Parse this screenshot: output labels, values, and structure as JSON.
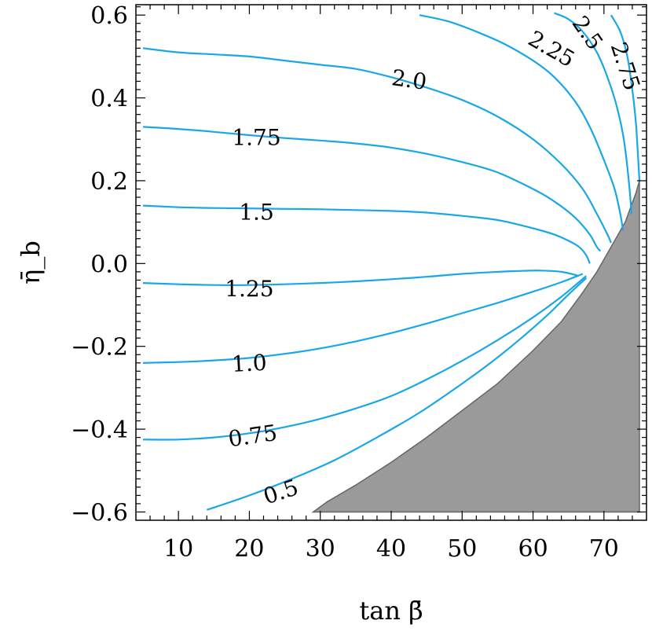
{
  "chart_data": {
    "type": "line",
    "title": "",
    "xlabel": "tan β̄",
    "ylabel": "η̄_b",
    "xlim": [
      4,
      76
    ],
    "ylim": [
      -0.62,
      0.625
    ],
    "x_ticks": [
      10,
      20,
      30,
      40,
      50,
      60,
      70
    ],
    "y_ticks": [
      -0.6,
      -0.4,
      -0.2,
      0.0,
      0.2,
      0.4,
      0.6
    ],
    "x_tick_labels": [
      "10",
      "20",
      "30",
      "40",
      "50",
      "60",
      "70"
    ],
    "y_tick_labels": [
      "−0.6",
      "−0.4",
      "−0.2",
      "0.0",
      "0.2",
      "0.4",
      "0.6"
    ],
    "colors": {
      "contour": "#1aa7e8",
      "excluded_region": "#9a9a9a"
    },
    "excluded_region": {
      "x": [
        29,
        31,
        35,
        40,
        45,
        50,
        55,
        60,
        64,
        67,
        69,
        71,
        73,
        74.5,
        75,
        75
      ],
      "y": [
        -0.6,
        -0.575,
        -0.535,
        -0.48,
        -0.42,
        -0.355,
        -0.29,
        -0.21,
        -0.14,
        -0.07,
        -0.02,
        0.04,
        0.1,
        0.17,
        0.2,
        -0.6
      ]
    },
    "series": [
      {
        "label": "0.5",
        "label_at": [
          24.5,
          -0.555
        ],
        "label_angle": -18,
        "x": [
          14,
          20,
          26,
          32,
          38,
          44,
          50,
          54,
          58,
          62,
          65,
          67.5
        ],
        "y": [
          -0.595,
          -0.56,
          -0.52,
          -0.475,
          -0.42,
          -0.36,
          -0.29,
          -0.24,
          -0.185,
          -0.125,
          -0.075,
          -0.035
        ]
      },
      {
        "label": "0.75",
        "label_at": [
          20.5,
          -0.42
        ],
        "label_angle": -8,
        "x": [
          5,
          10,
          15,
          20,
          25,
          30,
          35,
          40,
          45,
          50,
          55,
          60,
          64,
          67.5
        ],
        "y": [
          -0.425,
          -0.425,
          -0.42,
          -0.41,
          -0.395,
          -0.375,
          -0.35,
          -0.32,
          -0.28,
          -0.235,
          -0.185,
          -0.13,
          -0.08,
          -0.03
        ]
      },
      {
        "label": "1.0",
        "label_at": [
          20.0,
          -0.245
        ],
        "label_angle": -3,
        "x": [
          5,
          10,
          15,
          20,
          25,
          30,
          35,
          40,
          45,
          50,
          55,
          60,
          64,
          67
        ],
        "y": [
          -0.24,
          -0.238,
          -0.234,
          -0.228,
          -0.218,
          -0.205,
          -0.188,
          -0.168,
          -0.145,
          -0.12,
          -0.095,
          -0.068,
          -0.045,
          -0.025
        ]
      },
      {
        "label": "1.25",
        "label_at": [
          20.0,
          -0.065
        ],
        "label_angle": 0,
        "x": [
          5,
          10,
          15,
          20,
          25,
          30,
          35,
          40,
          45,
          50,
          55,
          58,
          61,
          64,
          66.5
        ],
        "y": [
          -0.047,
          -0.05,
          -0.052,
          -0.052,
          -0.05,
          -0.047,
          -0.043,
          -0.038,
          -0.032,
          -0.025,
          -0.02,
          -0.018,
          -0.017,
          -0.02,
          -0.03
        ]
      },
      {
        "label": "1.5",
        "label_at": [
          21.0,
          0.12
        ],
        "label_angle": 0,
        "x": [
          5,
          10,
          15,
          20,
          25,
          30,
          35,
          40,
          45,
          50,
          55,
          60,
          63,
          65,
          66.5,
          67.5,
          68
        ],
        "y": [
          0.14,
          0.136,
          0.134,
          0.133,
          0.132,
          0.131,
          0.129,
          0.127,
          0.123,
          0.115,
          0.105,
          0.085,
          0.07,
          0.055,
          0.04,
          0.02,
          0.0
        ]
      },
      {
        "label": "1.75",
        "label_at": [
          21.0,
          0.3
        ],
        "label_angle": 0,
        "x": [
          5,
          10,
          15,
          20,
          25,
          30,
          35,
          40,
          45,
          50,
          55,
          60,
          63,
          66,
          68,
          69,
          69.5
        ],
        "y": [
          0.33,
          0.325,
          0.318,
          0.31,
          0.303,
          0.297,
          0.29,
          0.28,
          0.265,
          0.245,
          0.22,
          0.18,
          0.15,
          0.11,
          0.07,
          0.04,
          0.03
        ]
      },
      {
        "label": "2.0",
        "label_at": [
          42.5,
          0.44
        ],
        "label_angle": 8,
        "x": [
          5,
          10,
          15,
          20,
          25,
          30,
          35,
          40,
          45,
          50,
          55,
          60,
          64,
          67,
          69,
          70.5,
          71
        ],
        "y": [
          0.52,
          0.51,
          0.505,
          0.5,
          0.49,
          0.48,
          0.47,
          0.45,
          0.425,
          0.395,
          0.355,
          0.3,
          0.24,
          0.18,
          0.12,
          0.07,
          0.05
        ]
      },
      {
        "label": "2.25",
        "label_at": [
          62.5,
          0.515
        ],
        "label_angle": 30,
        "x": [
          44,
          48,
          52,
          56,
          60,
          63,
          66,
          68,
          70,
          71.5,
          72.3,
          72.7
        ],
        "y": [
          0.6,
          0.585,
          0.56,
          0.53,
          0.49,
          0.45,
          0.39,
          0.33,
          0.25,
          0.18,
          0.12,
          0.08
        ]
      },
      {
        "label": "2.5",
        "label_at": [
          67.5,
          0.555
        ],
        "label_angle": 55,
        "x": [
          63,
          65,
          67,
          69,
          70.5,
          71.8,
          72.8,
          73.5,
          73.9
        ],
        "y": [
          0.605,
          0.59,
          0.56,
          0.51,
          0.45,
          0.38,
          0.3,
          0.2,
          0.12
        ]
      },
      {
        "label": "2.75",
        "label_at": [
          72.8,
          0.475
        ],
        "label_angle": 72,
        "x": [
          71,
          72.3,
          73.3,
          74,
          74.5,
          74.8,
          75
        ],
        "y": [
          0.6,
          0.56,
          0.5,
          0.42,
          0.34,
          0.26,
          0.2
        ]
      }
    ]
  }
}
